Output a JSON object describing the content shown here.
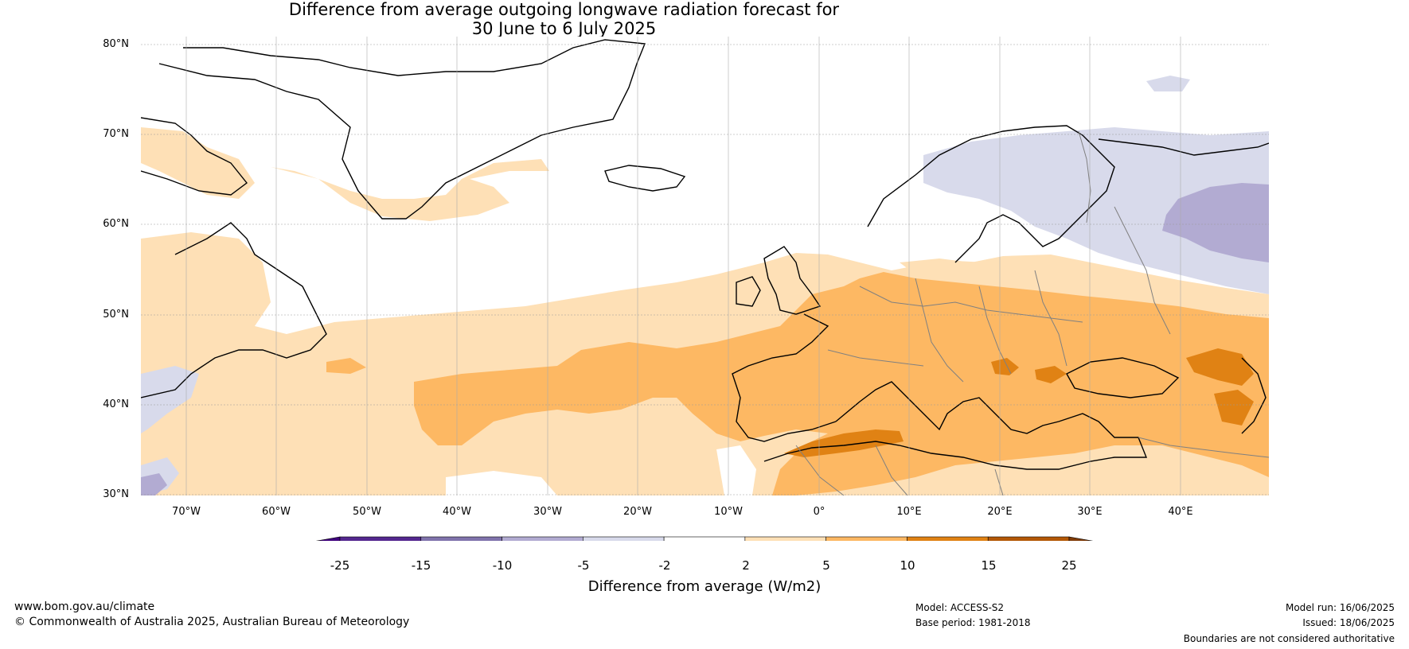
{
  "title": {
    "line1": "Difference from average outgoing longwave radiation forecast for",
    "line2": "30 June to 6 July 2025"
  },
  "map": {
    "lat_labels": [
      "80°N",
      "70°N",
      "60°N",
      "50°N",
      "40°N",
      "30°N"
    ],
    "lon_labels": [
      "70°W",
      "60°W",
      "50°W",
      "40°W",
      "30°W",
      "20°W",
      "10°W",
      "0°",
      "10°E",
      "20°E",
      "30°E",
      "40°E"
    ]
  },
  "colorbar": {
    "ticks": [
      "-25",
      "-15",
      "-10",
      "-5",
      "-2",
      "2",
      "5",
      "10",
      "15",
      "25"
    ],
    "colors": [
      "#3f007d",
      "#54278f",
      "#8073ac",
      "#b2abd2",
      "#d8daeb",
      "#ffffff",
      "#fee0b6",
      "#fdb863",
      "#e08214",
      "#b35806",
      "#7f3b08"
    ],
    "title": "Difference from average (W/m2)"
  },
  "footer": {
    "website": "www.bom.gov.au/climate",
    "copyright": "© Commonwealth of Australia 2025, Australian Bureau of Meteorology",
    "model": "Model: ACCESS-S2",
    "base_period": "Base period: 1981-2018",
    "model_run": "Model run: 16/06/2025",
    "issued": "Issued: 18/06/2025",
    "disclaimer": "Boundaries are not considered authoritative"
  }
}
